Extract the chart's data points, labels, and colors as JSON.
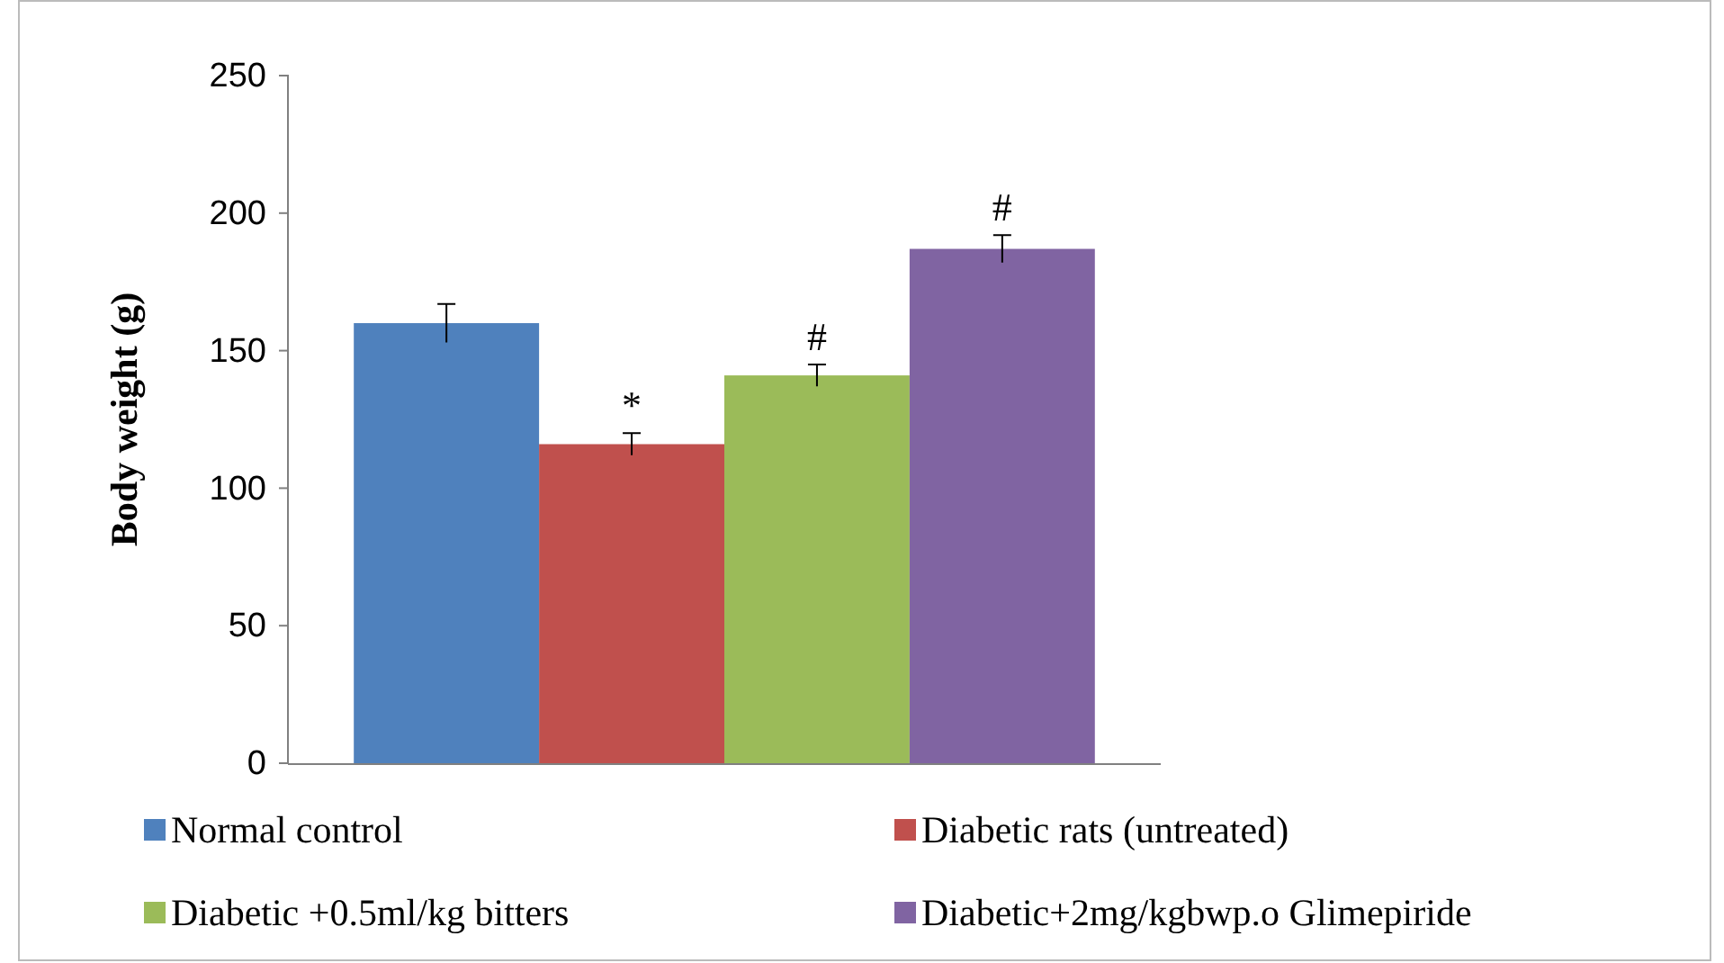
{
  "chart_data": {
    "type": "bar",
    "ylabel": "Body weight (g)",
    "categories": [
      null
    ],
    "series": [
      {
        "name": "Normal control",
        "color": "#4f81bd",
        "values": [
          160
        ],
        "errors": [
          7
        ]
      },
      {
        "name": "Diabetic rats (untreated)",
        "color": "#c0504d",
        "values": [
          116
        ],
        "errors": [
          4
        ]
      },
      {
        "name": "Diabetic +0.5ml/kg bitters",
        "color": "#9bbb59",
        "values": [
          141
        ],
        "errors": [
          4
        ]
      },
      {
        "name": "Diabetic+2mg/kgbwp.o Glimepiride",
        "color": "#8064a2",
        "values": [
          187
        ],
        "errors": [
          5
        ]
      }
    ],
    "annotations": [
      "*",
      "#",
      "#"
    ],
    "ylim": [
      0,
      250
    ],
    "yticks": [
      0,
      50,
      100,
      150,
      200,
      250
    ],
    "grid": false,
    "legend": "bottom"
  }
}
